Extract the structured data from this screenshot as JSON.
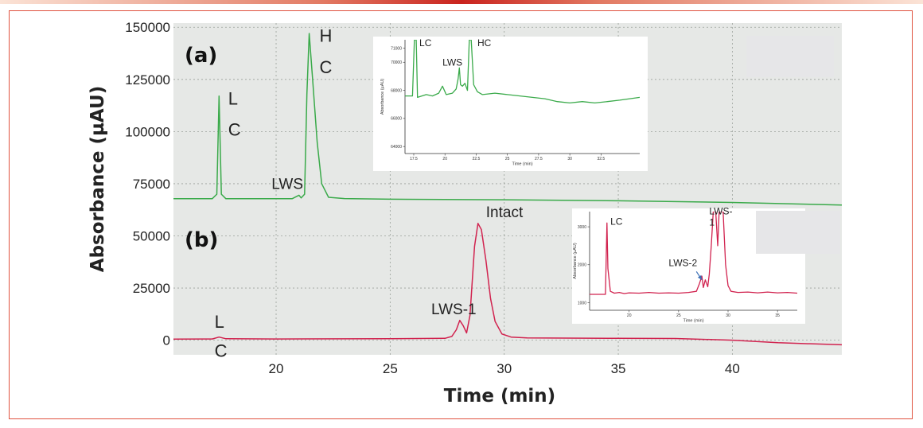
{
  "chart_data": {
    "type": "line",
    "xlabel": "Time (min)",
    "ylabel": "Absorbance (µAU)",
    "xlim": [
      15.5,
      44.8
    ],
    "ylim": [
      -7000,
      152000
    ],
    "x_ticks": [
      20,
      25,
      30,
      35,
      40
    ],
    "x_tick_labels": [
      "20",
      "25",
      "30",
      "35",
      "40"
    ],
    "y_ticks": [
      0,
      25000,
      50000,
      75000,
      100000,
      125000,
      150000
    ],
    "y_tick_labels": [
      "0",
      "25000",
      "50000",
      "75000",
      "100000",
      "125000",
      "150000"
    ],
    "grid": true,
    "panels": [
      "(a)",
      "(b)"
    ],
    "series": [
      {
        "color": "#3aaa4a",
        "points": [
          [
            15.5,
            67800
          ],
          [
            17.2,
            67800
          ],
          [
            17.4,
            70000
          ],
          [
            17.5,
            117000
          ],
          [
            17.6,
            70000
          ],
          [
            17.8,
            67800
          ],
          [
            20.7,
            67800
          ],
          [
            21.0,
            69500
          ],
          [
            21.1,
            68200
          ],
          [
            21.25,
            70000
          ],
          [
            21.35,
            118000
          ],
          [
            21.45,
            147000
          ],
          [
            21.6,
            125000
          ],
          [
            21.8,
            95000
          ],
          [
            22.0,
            75000
          ],
          [
            22.3,
            68500
          ],
          [
            23,
            67900
          ],
          [
            25,
            67600
          ],
          [
            30,
            67300
          ],
          [
            35,
            66800
          ],
          [
            40,
            66000
          ],
          [
            44.8,
            64800
          ]
        ]
      },
      {
        "color": "#d1234f",
        "points": [
          [
            15.5,
            500
          ],
          [
            17.2,
            600
          ],
          [
            17.5,
            1500
          ],
          [
            17.8,
            700
          ],
          [
            20,
            600
          ],
          [
            25,
            700
          ],
          [
            27.4,
            900
          ],
          [
            27.7,
            1800
          ],
          [
            27.9,
            5000
          ],
          [
            28.05,
            9500
          ],
          [
            28.2,
            7000
          ],
          [
            28.35,
            3500
          ],
          [
            28.5,
            12000
          ],
          [
            28.7,
            45000
          ],
          [
            28.85,
            56000
          ],
          [
            29.0,
            53000
          ],
          [
            29.2,
            38000
          ],
          [
            29.4,
            20000
          ],
          [
            29.6,
            9000
          ],
          [
            29.9,
            3000
          ],
          [
            30.3,
            1500
          ],
          [
            31,
            1100
          ],
          [
            35,
            900
          ],
          [
            37.5,
            800
          ],
          [
            40,
            0
          ],
          [
            42,
            -1200
          ],
          [
            44.8,
            -2200
          ]
        ]
      }
    ],
    "annotations": [
      {
        "text": "L",
        "x": 17.9,
        "y": 113000,
        "size": "big"
      },
      {
        "text": "C",
        "x": 17.9,
        "y": 98000,
        "size": "big"
      },
      {
        "text": "H",
        "x": 21.9,
        "y": 143000,
        "size": "big"
      },
      {
        "text": "C",
        "x": 21.9,
        "y": 128000,
        "size": "big"
      },
      {
        "text": "LWS",
        "x": 19.8,
        "y": 72500,
        "size": "normal"
      },
      {
        "text": "Intact",
        "x": 29.2,
        "y": 59000,
        "size": "normal"
      },
      {
        "text": "LWS-1",
        "x": 26.8,
        "y": 12500,
        "size": "normal"
      },
      {
        "text": "L",
        "x": 17.3,
        "y": 6000,
        "size": "big"
      },
      {
        "text": "C",
        "x": 17.3,
        "y": -8000,
        "size": "big"
      }
    ],
    "insets": [
      {
        "xlabel": "Time (min)",
        "ylabel": "Absorbance (µAU)",
        "xlim": [
          16.8,
          35.6
        ],
        "ylim": [
          63500,
          71600
        ],
        "x_ticks": [
          17.5,
          20,
          22.5,
          25,
          27.5,
          30,
          32.5
        ],
        "x_tick_labels": [
          "17.5",
          "20",
          "22.5",
          "25",
          "27.5",
          "30",
          "32.5"
        ],
        "y_ticks": [
          64000,
          66000,
          68000,
          70000,
          71000
        ],
        "y_tick_labels": [
          "64000",
          "66000",
          "68000",
          "70000",
          "71000"
        ],
        "color": "#3aaa4a",
        "points": [
          [
            16.8,
            67600
          ],
          [
            17.4,
            67600
          ],
          [
            17.55,
            71600
          ],
          [
            17.7,
            71600
          ],
          [
            17.8,
            67500
          ],
          [
            18.5,
            67700
          ],
          [
            19,
            67600
          ],
          [
            19.5,
            67800
          ],
          [
            19.8,
            68300
          ],
          [
            20.1,
            67700
          ],
          [
            20.6,
            67800
          ],
          [
            20.9,
            68100
          ],
          [
            21.05,
            68800
          ],
          [
            21.15,
            69600
          ],
          [
            21.25,
            68400
          ],
          [
            21.4,
            68300
          ],
          [
            21.6,
            68500
          ],
          [
            21.8,
            68000
          ],
          [
            21.95,
            71600
          ],
          [
            22.1,
            71600
          ],
          [
            22.3,
            68400
          ],
          [
            22.6,
            67900
          ],
          [
            23,
            67700
          ],
          [
            24,
            67800
          ],
          [
            25,
            67700
          ],
          [
            26,
            67600
          ],
          [
            27,
            67500
          ],
          [
            28,
            67400
          ],
          [
            29,
            67200
          ],
          [
            30,
            67100
          ],
          [
            31,
            67200
          ],
          [
            32,
            67100
          ],
          [
            33,
            67200
          ],
          [
            34,
            67300
          ],
          [
            35.6,
            67500
          ]
        ],
        "labels": [
          {
            "text": "LC",
            "x": 17.95,
            "y": 71150
          },
          {
            "text": "HC",
            "x": 22.6,
            "y": 71150
          },
          {
            "text": "LWS",
            "x": 19.8,
            "y": 69750
          }
        ]
      },
      {
        "xlabel": "Time (min)",
        "ylabel": "Absorbance (µAU)",
        "xlim": [
          16.0,
          37.0
        ],
        "ylim": [
          800,
          3400
        ],
        "x_ticks": [
          20,
          25,
          30,
          35
        ],
        "x_tick_labels": [
          "20",
          "25",
          "30",
          "35"
        ],
        "y_ticks": [
          1000,
          2000,
          3000
        ],
        "y_tick_labels": [
          "1000",
          "2000",
          "3000"
        ],
        "color": "#d1234f",
        "points": [
          [
            16,
            1220
          ],
          [
            17.6,
            1220
          ],
          [
            17.75,
            3100
          ],
          [
            17.85,
            1900
          ],
          [
            18.1,
            1300
          ],
          [
            18.5,
            1250
          ],
          [
            19,
            1270
          ],
          [
            19.5,
            1240
          ],
          [
            20,
            1260
          ],
          [
            21,
            1250
          ],
          [
            22,
            1270
          ],
          [
            23,
            1250
          ],
          [
            24,
            1260
          ],
          [
            25,
            1250
          ],
          [
            26,
            1270
          ],
          [
            26.8,
            1300
          ],
          [
            27.1,
            1500
          ],
          [
            27.35,
            1700
          ],
          [
            27.5,
            1400
          ],
          [
            27.7,
            1600
          ],
          [
            27.95,
            1420
          ],
          [
            28.1,
            1750
          ],
          [
            28.3,
            2500
          ],
          [
            28.5,
            3400
          ],
          [
            28.75,
            3400
          ],
          [
            28.95,
            2500
          ],
          [
            29.1,
            3400
          ],
          [
            29.5,
            3400
          ],
          [
            29.75,
            2000
          ],
          [
            30.0,
            1450
          ],
          [
            30.3,
            1300
          ],
          [
            31,
            1270
          ],
          [
            32,
            1280
          ],
          [
            33,
            1260
          ],
          [
            34,
            1280
          ],
          [
            35,
            1260
          ],
          [
            36,
            1270
          ],
          [
            37,
            1250
          ]
        ],
        "labels": [
          {
            "text": "LC",
            "x": 18.1,
            "y": 3050
          },
          {
            "text": "LWS-",
            "x": 28.1,
            "y": 3330
          },
          {
            "text": "1",
            "x": 28.1,
            "y": 3030
          },
          {
            "text": "LWS-2",
            "x": 24.0,
            "y": 1960
          }
        ],
        "arrow": {
          "from": [
            26.8,
            1820
          ],
          "to": [
            27.35,
            1600
          ],
          "color": "#3b6fb6"
        }
      }
    ]
  }
}
